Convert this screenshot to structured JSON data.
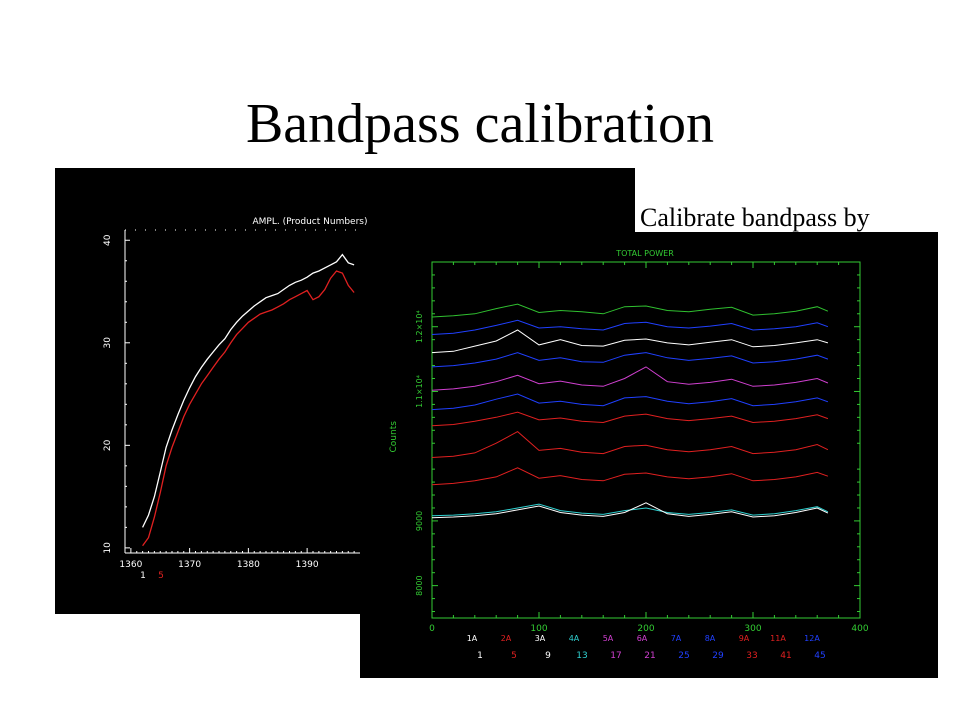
{
  "slide": {
    "title": "Bandpass calibration",
    "caption": "Calibrate bandpass by"
  },
  "colors": {
    "background": "#ffffff",
    "panel_background": "#000000",
    "frame_green": "#33cc33",
    "series_white": "#ffffff",
    "series_red": "#e02020",
    "series_blue": "#2040ff",
    "series_magenta": "#d040d0",
    "series_cyan": "#30d0d0",
    "series_green": "#30c030"
  },
  "chart_data": [
    {
      "type": "line",
      "title": "AMPL. (Product Numbers)",
      "xlabel": "",
      "ylabel": "",
      "xlim": [
        1359,
        1399
      ],
      "ylim": [
        9.5,
        41
      ],
      "x_ticks": [
        "1360",
        "1370",
        "1380",
        "1390"
      ],
      "x_tick_values": [
        1360,
        1370,
        1380,
        1390
      ],
      "y_ticks": [
        "10",
        "20",
        "30",
        "40"
      ],
      "y_tick_values": [
        10,
        20,
        30,
        40
      ],
      "legend": [
        {
          "label": "1",
          "color": "#ffffff"
        },
        {
          "label": "5",
          "color": "#e02020"
        }
      ],
      "series": [
        {
          "color": "#ffffff",
          "x": [
            1362.0,
            1363.0,
            1364.0,
            1365.0,
            1366.0,
            1367.0,
            1368.0,
            1369.0,
            1370.0,
            1371.0,
            1372.0,
            1373.0,
            1374.0,
            1375.0,
            1376.0,
            1377.0,
            1378.0,
            1379.0,
            1380.0,
            1381.0,
            1382.0,
            1383.0,
            1384.0,
            1385.0,
            1386.0,
            1387.0,
            1388.0,
            1389.0,
            1390.0,
            1391.0,
            1392.0,
            1393.0,
            1394.0,
            1395.0,
            1396.0,
            1397.0,
            1398.0
          ],
          "values": [
            12.0,
            13.2,
            15.0,
            17.4,
            19.8,
            21.5,
            23.0,
            24.4,
            25.6,
            26.7,
            27.6,
            28.4,
            29.1,
            29.8,
            30.4,
            31.3,
            32.0,
            32.6,
            33.1,
            33.6,
            34.0,
            34.4,
            34.6,
            34.8,
            35.2,
            35.6,
            35.9,
            36.1,
            36.4,
            36.8,
            37.0,
            37.3,
            37.6,
            37.9,
            38.6,
            37.8,
            37.6
          ]
        },
        {
          "color": "#e02020",
          "x": [
            1362.0,
            1363.0,
            1364.0,
            1365.0,
            1366.0,
            1367.0,
            1368.0,
            1369.0,
            1370.0,
            1371.0,
            1372.0,
            1373.0,
            1374.0,
            1375.0,
            1376.0,
            1377.0,
            1378.0,
            1379.0,
            1380.0,
            1381.0,
            1382.0,
            1383.0,
            1384.0,
            1385.0,
            1386.0,
            1387.0,
            1388.0,
            1389.0,
            1390.0,
            1391.0,
            1392.0,
            1393.0,
            1394.0,
            1395.0,
            1396.0,
            1397.0,
            1398.0
          ],
          "values": [
            10.2,
            11.0,
            13.0,
            15.4,
            18.0,
            19.8,
            21.3,
            22.8,
            24.0,
            25.0,
            26.0,
            26.8,
            27.6,
            28.4,
            29.1,
            30.0,
            30.8,
            31.4,
            32.0,
            32.4,
            32.8,
            33.0,
            33.2,
            33.5,
            33.8,
            34.2,
            34.5,
            34.8,
            35.1,
            34.2,
            34.5,
            35.2,
            36.3,
            37.0,
            36.8,
            35.6,
            34.9
          ]
        }
      ]
    },
    {
      "type": "line",
      "title": "TOTAL POWER",
      "xlabel": "",
      "ylabel": "Counts",
      "xlim": [
        0,
        400
      ],
      "ylim": [
        7500,
        13000
      ],
      "x_ticks": [
        "0",
        "100",
        "200",
        "300",
        "400"
      ],
      "x_tick_values": [
        0,
        100,
        200,
        300,
        400
      ],
      "y_ticks": [
        "8000",
        "9000",
        "1.1×10⁴",
        "1.2×10⁴"
      ],
      "y_tick_values": [
        8000,
        9000,
        11000,
        12000
      ],
      "legend_row1": [
        {
          "label": "1A",
          "color": "#ffffff"
        },
        {
          "label": "2A",
          "color": "#e02020"
        },
        {
          "label": "3A",
          "color": "#ffffff"
        },
        {
          "label": "4A",
          "color": "#30d0d0"
        },
        {
          "label": "5A",
          "color": "#d040d0"
        },
        {
          "label": "6A",
          "color": "#d040d0"
        },
        {
          "label": "7A",
          "color": "#2040ff"
        },
        {
          "label": "8A",
          "color": "#2040ff"
        },
        {
          "label": "9A",
          "color": "#e02020"
        },
        {
          "label": "11A",
          "color": "#e02020"
        },
        {
          "label": "12A",
          "color": "#2040ff"
        }
      ],
      "legend_row2": [
        {
          "label": "1",
          "color": "#ffffff"
        },
        {
          "label": "5",
          "color": "#e02020"
        },
        {
          "label": "9",
          "color": "#ffffff"
        },
        {
          "label": "13",
          "color": "#30d0d0"
        },
        {
          "label": "17",
          "color": "#d040d0"
        },
        {
          "label": "21",
          "color": "#d040d0"
        },
        {
          "label": "25",
          "color": "#2040ff"
        },
        {
          "label": "29",
          "color": "#2040ff"
        },
        {
          "label": "33",
          "color": "#e02020"
        },
        {
          "label": "41",
          "color": "#e02020"
        },
        {
          "label": "45",
          "color": "#2040ff"
        }
      ],
      "series_x": [
        0,
        20,
        40,
        60,
        80,
        100,
        120,
        140,
        160,
        180,
        200,
        220,
        240,
        260,
        280,
        300,
        320,
        340,
        360,
        370
      ],
      "series": [
        {
          "color": "#30c030",
          "values": [
            12150,
            12170,
            12200,
            12280,
            12350,
            12220,
            12250,
            12230,
            12200,
            12310,
            12320,
            12250,
            12230,
            12270,
            12300,
            12180,
            12200,
            12240,
            12310,
            12240
          ]
        },
        {
          "color": "#2040ff",
          "values": [
            11880,
            11900,
            11950,
            12020,
            12100,
            11980,
            12000,
            11970,
            11950,
            12050,
            12070,
            12000,
            11980,
            12010,
            12050,
            11950,
            11970,
            12000,
            12060,
            12000
          ]
        },
        {
          "color": "#ffffff",
          "values": [
            11600,
            11620,
            11700,
            11780,
            11950,
            11720,
            11800,
            11710,
            11700,
            11790,
            11810,
            11750,
            11720,
            11760,
            11800,
            11690,
            11710,
            11750,
            11800,
            11750
          ]
        },
        {
          "color": "#2040ff",
          "values": [
            11380,
            11400,
            11440,
            11500,
            11600,
            11480,
            11520,
            11460,
            11450,
            11560,
            11600,
            11520,
            11480,
            11510,
            11550,
            11440,
            11460,
            11500,
            11560,
            11500
          ]
        },
        {
          "color": "#d040d0",
          "values": [
            11020,
            11040,
            11080,
            11150,
            11250,
            11120,
            11160,
            11100,
            11080,
            11200,
            11380,
            11150,
            11110,
            11140,
            11190,
            11080,
            11100,
            11140,
            11200,
            11130
          ]
        },
        {
          "color": "#2040ff",
          "values": [
            10720,
            10740,
            10790,
            10880,
            10960,
            10820,
            10850,
            10800,
            10780,
            10900,
            10920,
            10850,
            10810,
            10840,
            10890,
            10780,
            10800,
            10840,
            10900,
            10840
          ]
        },
        {
          "color": "#e02020",
          "values": [
            10470,
            10490,
            10540,
            10600,
            10680,
            10560,
            10590,
            10540,
            10520,
            10620,
            10650,
            10580,
            10550,
            10580,
            10620,
            10520,
            10540,
            10580,
            10640,
            10580
          ]
        },
        {
          "color": "#e02020",
          "values": [
            9980,
            10000,
            10050,
            10200,
            10380,
            10090,
            10120,
            10060,
            10040,
            10150,
            10170,
            10100,
            10070,
            10100,
            10150,
            10040,
            10060,
            10100,
            10180,
            10100
          ]
        },
        {
          "color": "#e02020",
          "values": [
            9560,
            9580,
            9620,
            9680,
            9820,
            9660,
            9700,
            9640,
            9620,
            9720,
            9740,
            9680,
            9650,
            9680,
            9730,
            9620,
            9640,
            9680,
            9750,
            9690
          ]
        },
        {
          "color": "#30d0d0",
          "values": [
            9080,
            9090,
            9110,
            9140,
            9200,
            9260,
            9160,
            9120,
            9100,
            9160,
            9200,
            9130,
            9100,
            9130,
            9170,
            9090,
            9110,
            9160,
            9220,
            9140
          ]
        },
        {
          "color": "#ffffff",
          "values": [
            9050,
            9060,
            9080,
            9110,
            9170,
            9230,
            9130,
            9090,
            9070,
            9130,
            9280,
            9110,
            9070,
            9100,
            9140,
            9060,
            9080,
            9130,
            9200,
            9120
          ]
        }
      ]
    }
  ]
}
